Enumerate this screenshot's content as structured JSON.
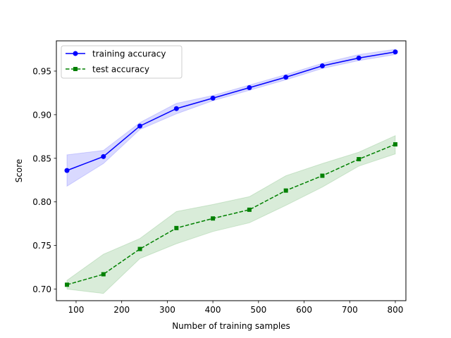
{
  "chart_data": {
    "type": "line",
    "xlabel": "Number of training samples",
    "ylabel": "Score",
    "xlim": [
      56.8,
      823.2
    ],
    "ylim": [
      0.6867,
      0.9847
    ],
    "x_ticks": [
      100,
      200,
      300,
      400,
      500,
      600,
      700,
      800
    ],
    "y_ticks": [
      0.7,
      0.75,
      0.8,
      0.85,
      0.9,
      0.95
    ],
    "x_tick_labels": [
      "100",
      "200",
      "300",
      "400",
      "500",
      "600",
      "700",
      "800"
    ],
    "y_tick_labels": [
      "0.70",
      "0.75",
      "0.80",
      "0.85",
      "0.90",
      "0.95"
    ],
    "grid": false,
    "legend_position": "top-left",
    "x": [
      80,
      160,
      240,
      320,
      400,
      480,
      560,
      640,
      720,
      800
    ],
    "series": [
      {
        "name": "training accuracy",
        "color": "#0000ff",
        "band_color": "#0000ff",
        "line_style": "solid",
        "marker": "circle",
        "values": [
          0.836,
          0.852,
          0.887,
          0.907,
          0.919,
          0.931,
          0.943,
          0.956,
          0.965,
          0.972
        ],
        "band_upper": [
          0.854,
          0.859,
          0.891,
          0.913,
          0.922,
          0.934,
          0.946,
          0.959,
          0.969,
          0.975
        ],
        "band_lower": [
          0.818,
          0.844,
          0.883,
          0.901,
          0.916,
          0.928,
          0.94,
          0.953,
          0.962,
          0.969
        ]
      },
      {
        "name": "test accuracy",
        "color": "#008000",
        "band_color": "#008000",
        "line_style": "dashed",
        "marker": "square",
        "values": [
          0.705,
          0.717,
          0.746,
          0.77,
          0.781,
          0.791,
          0.813,
          0.83,
          0.849,
          0.866
        ],
        "band_upper": [
          0.71,
          0.74,
          0.758,
          0.789,
          0.797,
          0.806,
          0.83,
          0.844,
          0.857,
          0.876
        ],
        "band_lower": [
          0.7,
          0.695,
          0.735,
          0.752,
          0.766,
          0.776,
          0.796,
          0.817,
          0.841,
          0.855
        ]
      }
    ]
  }
}
